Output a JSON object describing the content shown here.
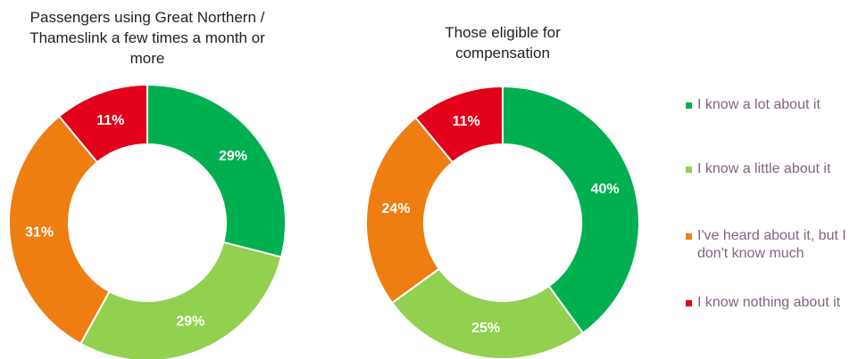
{
  "chart_data": [
    {
      "type": "donut",
      "title": "Passengers using Great Northern / Thameslink a few times a month or more",
      "values": [
        29,
        29,
        31,
        11
      ],
      "value_labels": [
        "29%",
        "29%",
        "31%",
        "11%"
      ]
    },
    {
      "type": "donut",
      "title": "Those eligible for compensation",
      "values": [
        40,
        25,
        24,
        11
      ],
      "value_labels": [
        "40%",
        "25%",
        "24%",
        "11%"
      ]
    }
  ],
  "legend": {
    "labels": [
      "I know a lot about it",
      "I know a little about it",
      "I've heard about it, but I don't know much",
      "I know nothing about it"
    ],
    "colors": [
      "#00b050",
      "#92d050",
      "#ee7d12",
      "#e2001a"
    ]
  }
}
